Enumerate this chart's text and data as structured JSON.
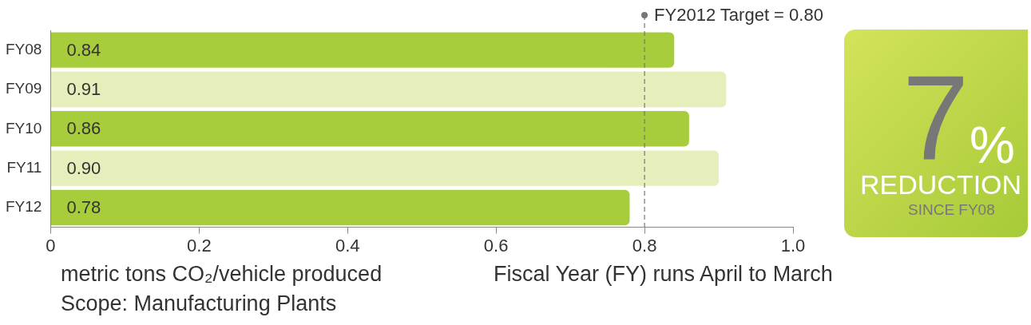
{
  "chart_data": {
    "type": "bar",
    "orientation": "horizontal",
    "categories": [
      "FY08",
      "FY09",
      "FY10",
      "FY11",
      "FY12"
    ],
    "values": [
      0.84,
      0.91,
      0.86,
      0.9,
      0.78
    ],
    "colors": [
      "#a8cd3c",
      "#e6efbb",
      "#a8cd3c",
      "#e6efbb",
      "#a8cd3c"
    ],
    "xlim": [
      0,
      1
    ],
    "xticks": [
      0,
      0.2,
      0.4,
      0.6,
      0.8,
      {
        "value": 1,
        "label": "1.0"
      }
    ],
    "xlabel": "metric tons CO₂/vehicle produced",
    "value_labels": [
      "0.84",
      "0.91",
      "0.86",
      "0.90",
      "0.78"
    ],
    "grid": false,
    "legend": false,
    "ref_lines": [
      {
        "axis": "x",
        "value": 0.8,
        "label": "FY2012 Target = 0.80",
        "color": "#777777",
        "line_style": "dashed"
      }
    ],
    "annotations": [
      "Fiscal Year (FY) runs April to March",
      "Scope: Manufacturing Plants",
      "7",
      "%",
      "REDUCTION",
      "SINCE FY08"
    ]
  }
}
